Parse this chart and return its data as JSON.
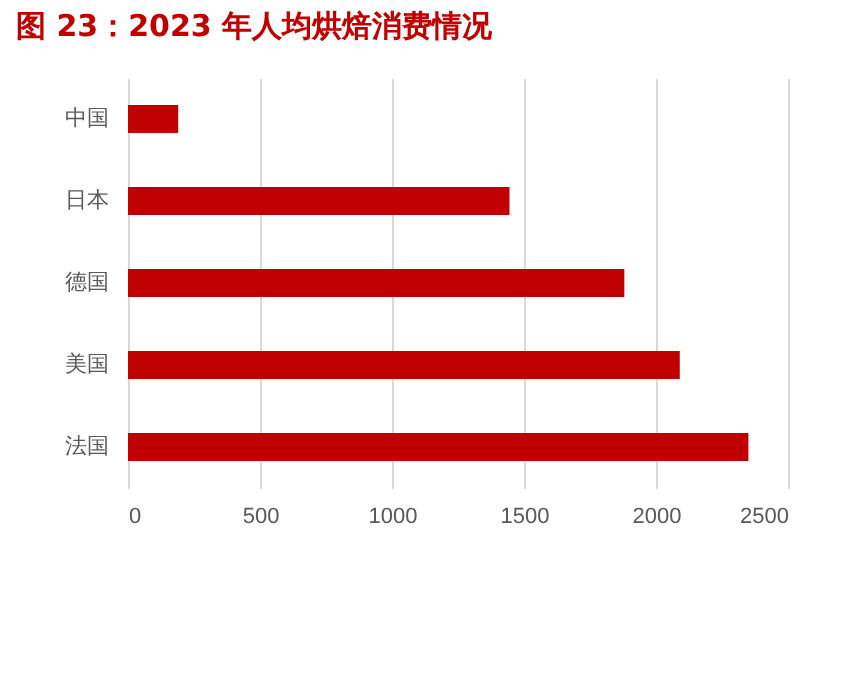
{
  "chart_data": {
    "type": "bar",
    "orientation": "horizontal",
    "title": "图 23：2023 年人均烘焙消费情况",
    "categories": [
      "中国",
      "日本",
      "德国",
      "美国",
      "法国"
    ],
    "values": [
      190,
      1445,
      1880,
      2090,
      2350
    ],
    "color": "#c00000",
    "xlim": [
      0,
      2500
    ],
    "xticks": [
      0,
      500,
      1000,
      1500,
      2000,
      2500
    ],
    "grid": "x"
  }
}
